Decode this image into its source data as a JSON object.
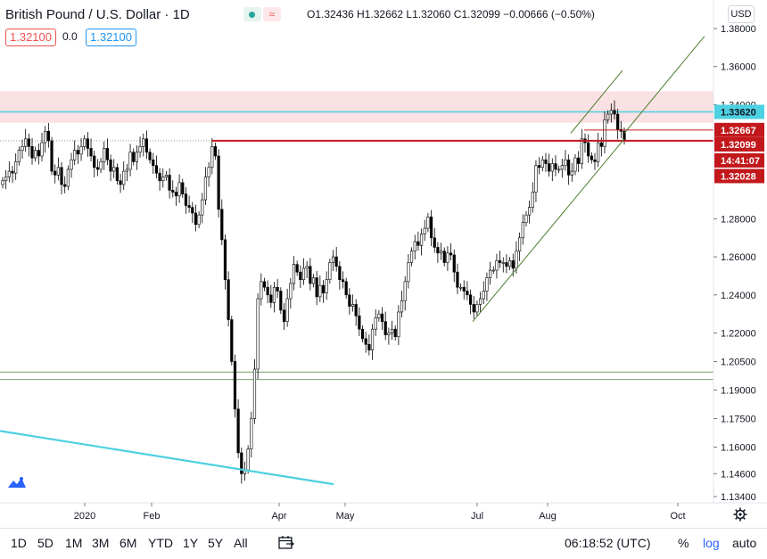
{
  "header": {
    "title": "British Pound / U.S. Dollar · 1D",
    "ohlc": "O1.32436 H1.32662 L1.32060 C1.32099 −0.00666 (−0.50%)",
    "pill_left": "1.32100",
    "pill_mid": "0.0",
    "pill_right": "1.32100",
    "currency": "USD"
  },
  "bottom": {
    "ranges": [
      "1D",
      "5D",
      "1M",
      "3M",
      "6M",
      "YTD",
      "1Y",
      "5Y",
      "All"
    ],
    "clock": "06:18:52 (UTC)",
    "percent": "%",
    "log": "log",
    "auto": "auto"
  },
  "colors": {
    "up": "#26a69a",
    "down": "#ef5350",
    "redline": "#c2181c",
    "cyan": "#4dd0e1",
    "blue": "#2196f3",
    "green": "#4b7d2c"
  },
  "chart_data": {
    "type": "candlestick",
    "instrument": "British Pound / U.S. Dollar",
    "interval": "1D",
    "ylim": [
      1.134,
      1.389
    ],
    "y_ticks": [
      1.38,
      1.36,
      1.34,
      1.3362,
      1.32667,
      1.32099,
      1.32028,
      1.28,
      1.26,
      1.24,
      1.22,
      1.205,
      1.19,
      1.175,
      1.16,
      1.146,
      1.134
    ],
    "y_tick_labels": [
      "1.38000",
      "1.36000",
      "1.34000",
      "1.28000",
      "1.26000",
      "1.24000",
      "1.22000",
      "1.20500",
      "1.19000",
      "1.17500",
      "1.16000",
      "1.14600",
      "1.13400"
    ],
    "x_tick_labels": [
      "2020",
      "Feb",
      "Apr",
      "May",
      "Jul",
      "Aug",
      "Oct"
    ],
    "price_labels": [
      {
        "text": "1.33620",
        "color": "#4dd0e1"
      },
      {
        "text": "1.32667",
        "color": "#c2181c"
      },
      {
        "text": "1.32099",
        "color": "#c2181c"
      },
      {
        "text": "14:41:07",
        "color": "#c2181c"
      },
      {
        "text": "1.32028",
        "color": "#c2181c"
      }
    ],
    "close_path": [
      1.3,
      1.302,
      1.305,
      1.304,
      1.31,
      1.316,
      1.318,
      1.322,
      1.318,
      1.312,
      1.316,
      1.313,
      1.32,
      1.326,
      1.321,
      1.305,
      1.303,
      1.307,
      1.298,
      1.297,
      1.306,
      1.311,
      1.316,
      1.314,
      1.318,
      1.322,
      1.317,
      1.313,
      1.307,
      1.306,
      1.31,
      1.317,
      1.311,
      1.305,
      1.307,
      1.3,
      1.298,
      1.305,
      1.306,
      1.315,
      1.31,
      1.315,
      1.318,
      1.322,
      1.315,
      1.311,
      1.308,
      1.304,
      1.3,
      1.302,
      1.303,
      1.295,
      1.294,
      1.292,
      1.299,
      1.293,
      1.287,
      1.286,
      1.283,
      1.277,
      1.282,
      1.29,
      1.302,
      1.307,
      1.318,
      1.313,
      1.285,
      1.269,
      1.248,
      1.227,
      1.205,
      1.18,
      1.157,
      1.146,
      1.148,
      1.159,
      1.175,
      1.201,
      1.238,
      1.247,
      1.244,
      1.24,
      1.236,
      1.244,
      1.242,
      1.232,
      1.226,
      1.238,
      1.246,
      1.256,
      1.252,
      1.248,
      1.254,
      1.255,
      1.246,
      1.249,
      1.239,
      1.245,
      1.241,
      1.248,
      1.257,
      1.26,
      1.255,
      1.248,
      1.247,
      1.24,
      1.234,
      1.235,
      1.229,
      1.222,
      1.217,
      1.214,
      1.211,
      1.222,
      1.228,
      1.23,
      1.226,
      1.219,
      1.22,
      1.222,
      1.218,
      1.231,
      1.237,
      1.247,
      1.257,
      1.263,
      1.268,
      1.266,
      1.272,
      1.275,
      1.281,
      1.27,
      1.265,
      1.262,
      1.263,
      1.257,
      1.262,
      1.261,
      1.252,
      1.244,
      1.244,
      1.242,
      1.24,
      1.235,
      1.231,
      1.235,
      1.238,
      1.242,
      1.249,
      1.253,
      1.253,
      1.258,
      1.257,
      1.257,
      1.255,
      1.258,
      1.254,
      1.263,
      1.27,
      1.278,
      1.282,
      1.286,
      1.294,
      1.308,
      1.307,
      1.311,
      1.309,
      1.305,
      1.309,
      1.306,
      1.306,
      1.308,
      1.311,
      1.303,
      1.305,
      1.312,
      1.309,
      1.322,
      1.32,
      1.313,
      1.311,
      1.31,
      1.32,
      1.318,
      1.332,
      1.335,
      1.337,
      1.335,
      1.327,
      1.326,
      1.321
    ]
  }
}
